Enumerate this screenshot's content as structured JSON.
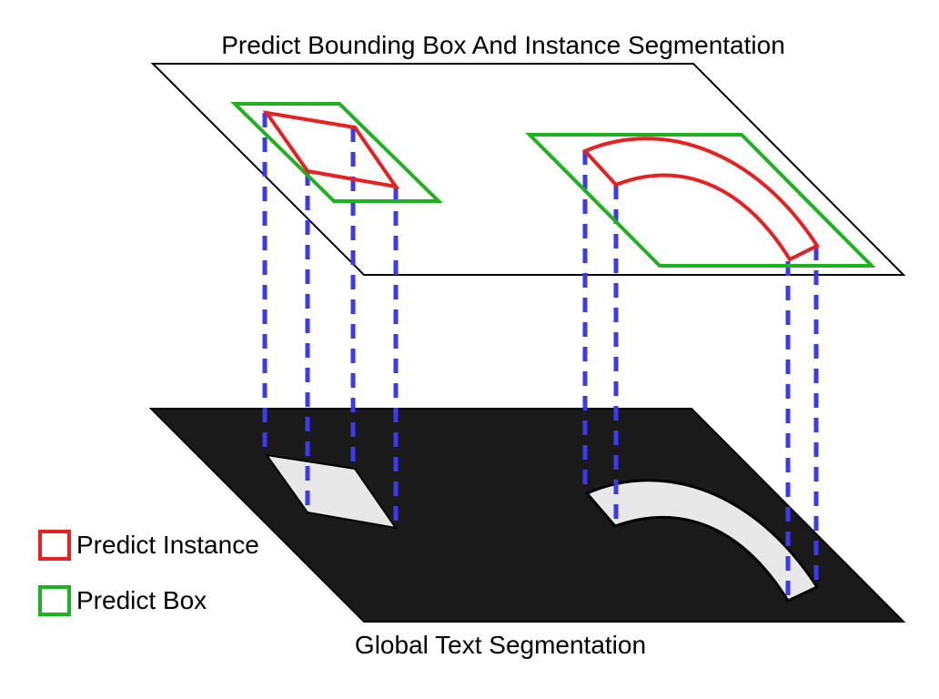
{
  "titles": {
    "top": "Predict Bounding Box And Instance Segmentation",
    "bottom": "Global Text Segmentation"
  },
  "legend": {
    "instance_label": "Predict Instance",
    "box_label": "Predict Box"
  },
  "colors": {
    "instance": "#e82020",
    "box": "#1fb21f",
    "projection": "#3a3af0",
    "segmentation_plane": "#1a1a1a",
    "text_region": "#e8e8e8",
    "plane_outline": "#000000"
  }
}
